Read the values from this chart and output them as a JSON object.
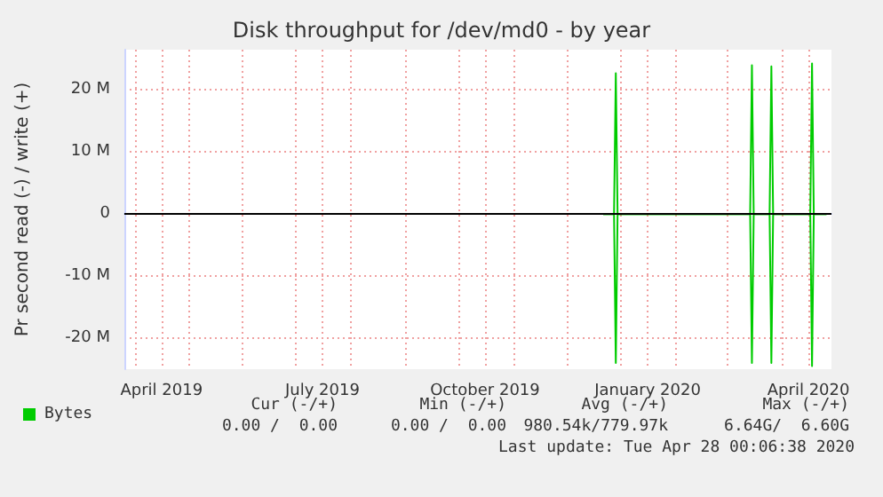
{
  "chart_data": {
    "type": "line",
    "title": "Disk throughput for /dev/md0 - by year",
    "ylabel": "Pr second read (-) / write (+)",
    "x": [
      "2019-12-22",
      "2019-12-28",
      "2019-12-29",
      "2019-12-30",
      "2020-03-14",
      "2020-03-15",
      "2020-03-16",
      "2020-03-25",
      "2020-03-26",
      "2020-03-27",
      "2020-04-17",
      "2020-04-18",
      "2020-04-19",
      "2020-04-26"
    ],
    "series": [
      {
        "name": "Bytes",
        "color": "#00cc00",
        "values": [
          0,
          0,
          22.7,
          0,
          0,
          24,
          0,
          0,
          23.8,
          0,
          0,
          24.3,
          0,
          0
        ]
      },
      {
        "color": "#00cc00",
        "values": [
          0,
          0,
          -24,
          0,
          0,
          -24,
          0,
          0,
          -24,
          0,
          0,
          -24.5,
          0,
          0
        ]
      }
    ],
    "xlim": [
      "2019-03-26",
      "2020-04-29"
    ],
    "xticks": [
      {
        "value": "2019-04-01",
        "label": null
      },
      {
        "value": "2019-04-16",
        "label": "April 2019"
      },
      {
        "value": "2019-05-01",
        "label": null
      },
      {
        "value": "2019-06-01",
        "label": null
      },
      {
        "value": "2019-07-01",
        "label": null
      },
      {
        "value": "2019-07-16",
        "label": "July 2019"
      },
      {
        "value": "2019-08-01",
        "label": null
      },
      {
        "value": "2019-09-01",
        "label": null
      },
      {
        "value": "2019-10-01",
        "label": null
      },
      {
        "value": "2019-10-16",
        "label": "October 2019"
      },
      {
        "value": "2019-11-01",
        "label": null
      },
      {
        "value": "2019-12-01",
        "label": null
      },
      {
        "value": "2020-01-01",
        "label": null
      },
      {
        "value": "2020-01-16",
        "label": "January 2020"
      },
      {
        "value": "2020-02-01",
        "label": null
      },
      {
        "value": "2020-03-01",
        "label": null
      },
      {
        "value": "2020-04-01",
        "label": null
      },
      {
        "value": "2020-04-16",
        "label": "April 2020"
      }
    ],
    "ylim": [
      -25,
      26.5
    ],
    "yticks": [
      {
        "value": -20,
        "label": "-20 M"
      },
      {
        "value": -10,
        "label": "-10 M"
      },
      {
        "value": 0,
        "label": "0"
      },
      {
        "value": 10,
        "label": "10 M"
      },
      {
        "value": 20,
        "label": "20 M"
      }
    ],
    "ref_lines": [
      {
        "axis": "y",
        "value": 0,
        "label": null,
        "color": "#000000"
      }
    ],
    "grid": true,
    "legend": "bottom left",
    "marker": "none",
    "line_style": "solid",
    "annotations": [
      "Cur (-/+)",
      "Min (-/+)",
      "Avg (-/+)",
      "Max (-/+)",
      "0.00 /  0.00",
      "0.00 /  0.00",
      "980.54k/779.97k",
      "6.64G/  6.60G",
      "Last update: Tue Apr 28 00:06:38 2020"
    ]
  }
}
